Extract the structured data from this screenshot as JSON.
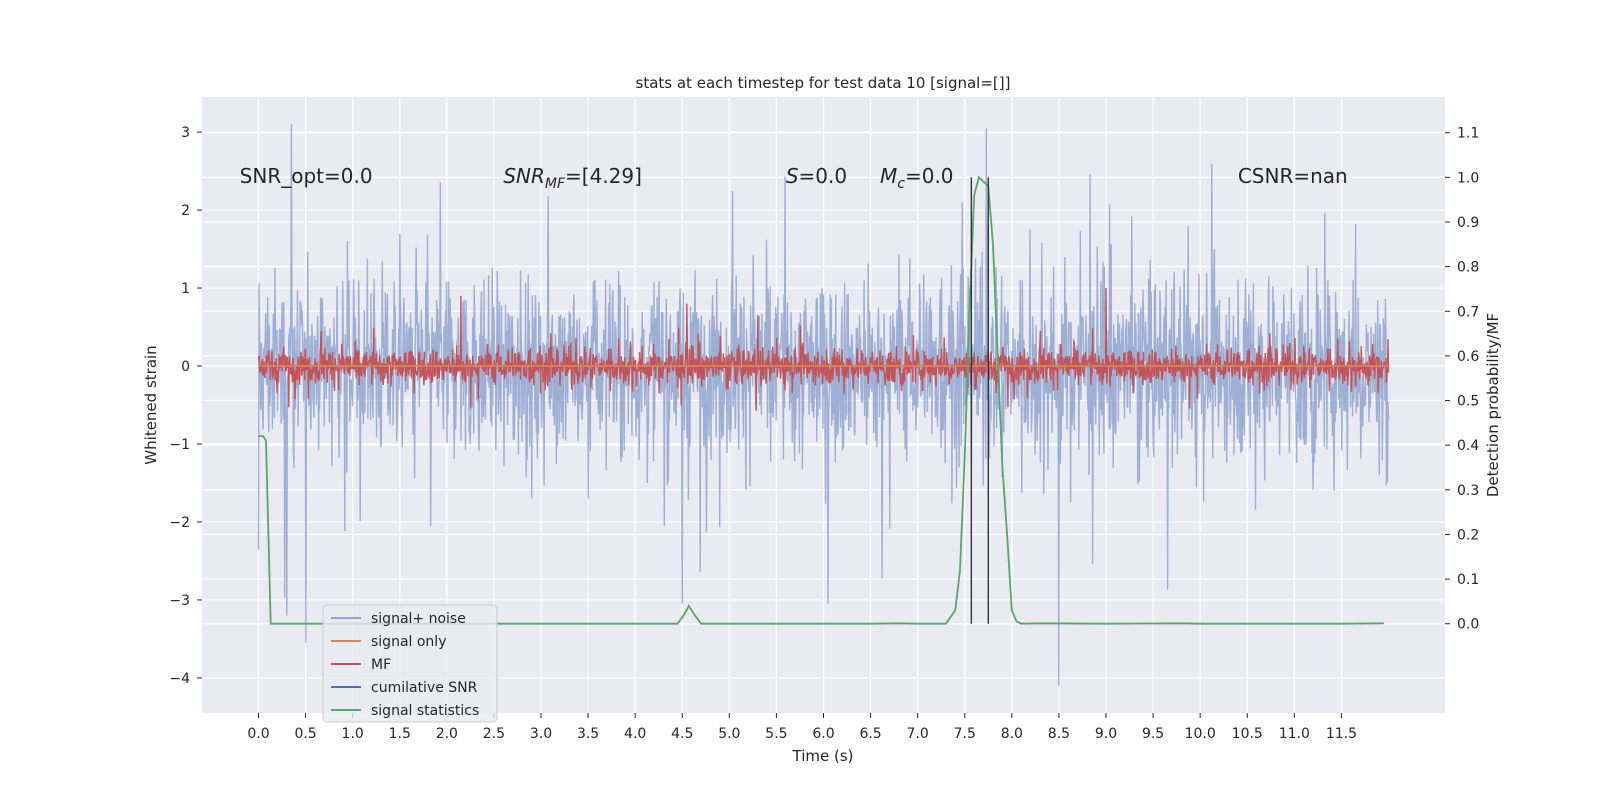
{
  "chart_data": {
    "type": "line",
    "title": "stats at each timestep for test data 10 [signal=[]]",
    "xlabel": "Time (s)",
    "ylabel_left": "Whitened strain",
    "ylabel_right": "Detection probability/MF",
    "xlim": [
      -0.6,
      12.6
    ],
    "ylim_left": [
      -4.45,
      3.45
    ],
    "ylim_right": [
      -0.2,
      1.18
    ],
    "x_ticks": [
      0.0,
      0.5,
      1.0,
      1.5,
      2.0,
      2.5,
      3.0,
      3.5,
      4.0,
      4.5,
      5.0,
      5.5,
      6.0,
      6.5,
      7.0,
      7.5,
      8.0,
      8.5,
      9.0,
      9.5,
      10.0,
      10.5,
      11.0,
      11.5
    ],
    "x_tick_labels": [
      "0.0",
      "0.5",
      "1.0",
      "1.5",
      "2.0",
      "2.5",
      "3.0",
      "3.5",
      "4.0",
      "4.5",
      "5.0",
      "5.5",
      "6.0",
      "6.5",
      "7.0",
      "7.5",
      "8.0",
      "8.5",
      "9.0",
      "9.5",
      "10.0",
      "10.5",
      "11.0",
      "11.5"
    ],
    "y_left_ticks": [
      3,
      2,
      1,
      0,
      -1,
      -2,
      -3,
      -4
    ],
    "y_left_tick_labels": [
      "3",
      "2",
      "1",
      "0",
      "−1",
      "−2",
      "−3",
      "−4"
    ],
    "y_right_ticks": [
      1.1,
      1.0,
      0.9,
      0.8,
      0.7,
      0.6,
      0.5,
      0.4,
      0.3,
      0.2,
      0.1,
      0.0
    ],
    "y_right_tick_labels": [
      "1.1",
      "1.0",
      "0.9",
      "0.8",
      "0.7",
      "0.6",
      "0.5",
      "0.4",
      "0.3",
      "0.2",
      "0.1",
      "0.0"
    ],
    "grid": true,
    "legend_position": "bottom-left",
    "legend": [
      {
        "label": "signal+ noise",
        "color": "#8fa5cf"
      },
      {
        "label": "signal only",
        "color": "#dd8452"
      },
      {
        "label": "MF",
        "color": "#c44e52"
      },
      {
        "label": "cumilative SNR",
        "color": "#4c72b0"
      },
      {
        "label": "signal statistics",
        "color": "#55a868"
      }
    ],
    "annotations": [
      {
        "id": "snr-opt",
        "x": -0.2,
        "y": 2.35,
        "text": "SNR_opt=0.0"
      },
      {
        "id": "snr-mf",
        "x": 2.6,
        "y": 2.35,
        "text": "SNR_MF=[4.29]"
      },
      {
        "id": "s",
        "x": 5.6,
        "y": 2.35,
        "text": "S=0.0"
      },
      {
        "id": "mc",
        "x": 6.6,
        "y": 2.35,
        "text": "M_c=0.0"
      },
      {
        "id": "csnr",
        "x": 10.4,
        "y": 2.35,
        "text": "CSNR=nan"
      }
    ],
    "vertical_lines": [
      {
        "x": 7.57,
        "ymin": 0.0,
        "ymax": 1.0
      },
      {
        "x": 7.75,
        "ymin": 0.0,
        "ymax": 1.0
      }
    ],
    "series": [
      {
        "name": "signal+ noise",
        "axis": "left",
        "style": "noise",
        "color": "#8fa5cf",
        "x_range": [
          0.0,
          12.0
        ],
        "band": [
          -1.5,
          1.5
        ],
        "notable_points": [
          [
            0.0,
            -2.35
          ],
          [
            0.3,
            -3.2
          ],
          [
            0.35,
            3.1
          ],
          [
            0.5,
            -3.55
          ],
          [
            4.5,
            -3.05
          ],
          [
            6.05,
            -3.05
          ],
          [
            7.73,
            3.05
          ],
          [
            8.5,
            -4.1
          ]
        ]
      },
      {
        "name": "signal only",
        "axis": "left",
        "color": "#dd8452",
        "x": [
          0.0,
          12.0
        ],
        "y": [
          0.0,
          0.0
        ]
      },
      {
        "name": "MF",
        "axis": "left",
        "style": "noise",
        "color": "#c44e52",
        "x_range": [
          0.0,
          12.0
        ],
        "band": [
          -0.3,
          0.3
        ],
        "notable_points": [
          [
            2.15,
            0.9
          ],
          [
            4.55,
            0.8
          ],
          [
            9.0,
            1.0
          ],
          [
            5.3,
            0.65
          ]
        ]
      },
      {
        "name": "cumilative SNR",
        "axis": "left",
        "color": "#4c72b0",
        "x": [],
        "y": []
      },
      {
        "name": "signal statistics",
        "axis": "right",
        "color": "#55a868",
        "x": [
          0.0,
          0.05,
          0.08,
          0.13,
          0.5,
          1.0,
          2.0,
          3.0,
          4.0,
          4.45,
          4.52,
          4.57,
          4.63,
          4.7,
          5.0,
          6.0,
          6.5,
          6.8,
          7.0,
          7.3,
          7.4,
          7.45,
          7.5,
          7.55,
          7.6,
          7.65,
          7.7,
          7.75,
          7.8,
          7.85,
          7.9,
          7.95,
          8.0,
          8.05,
          8.1,
          8.3,
          9.0,
          9.8,
          10.0,
          11.0,
          11.5,
          11.95
        ],
        "y": [
          0.42,
          0.42,
          0.41,
          0.0,
          0.0,
          0.0,
          0.0,
          0.0,
          0.0,
          0.0,
          0.02,
          0.04,
          0.02,
          0.0,
          0.0,
          0.0,
          0.0,
          0.001,
          0.0,
          0.0,
          0.03,
          0.12,
          0.38,
          0.7,
          0.96,
          1.0,
          0.99,
          0.98,
          0.85,
          0.6,
          0.35,
          0.2,
          0.03,
          0.005,
          0.0,
          0.001,
          0.0,
          0.001,
          0.0,
          0.0,
          0.0,
          0.001
        ]
      }
    ]
  }
}
